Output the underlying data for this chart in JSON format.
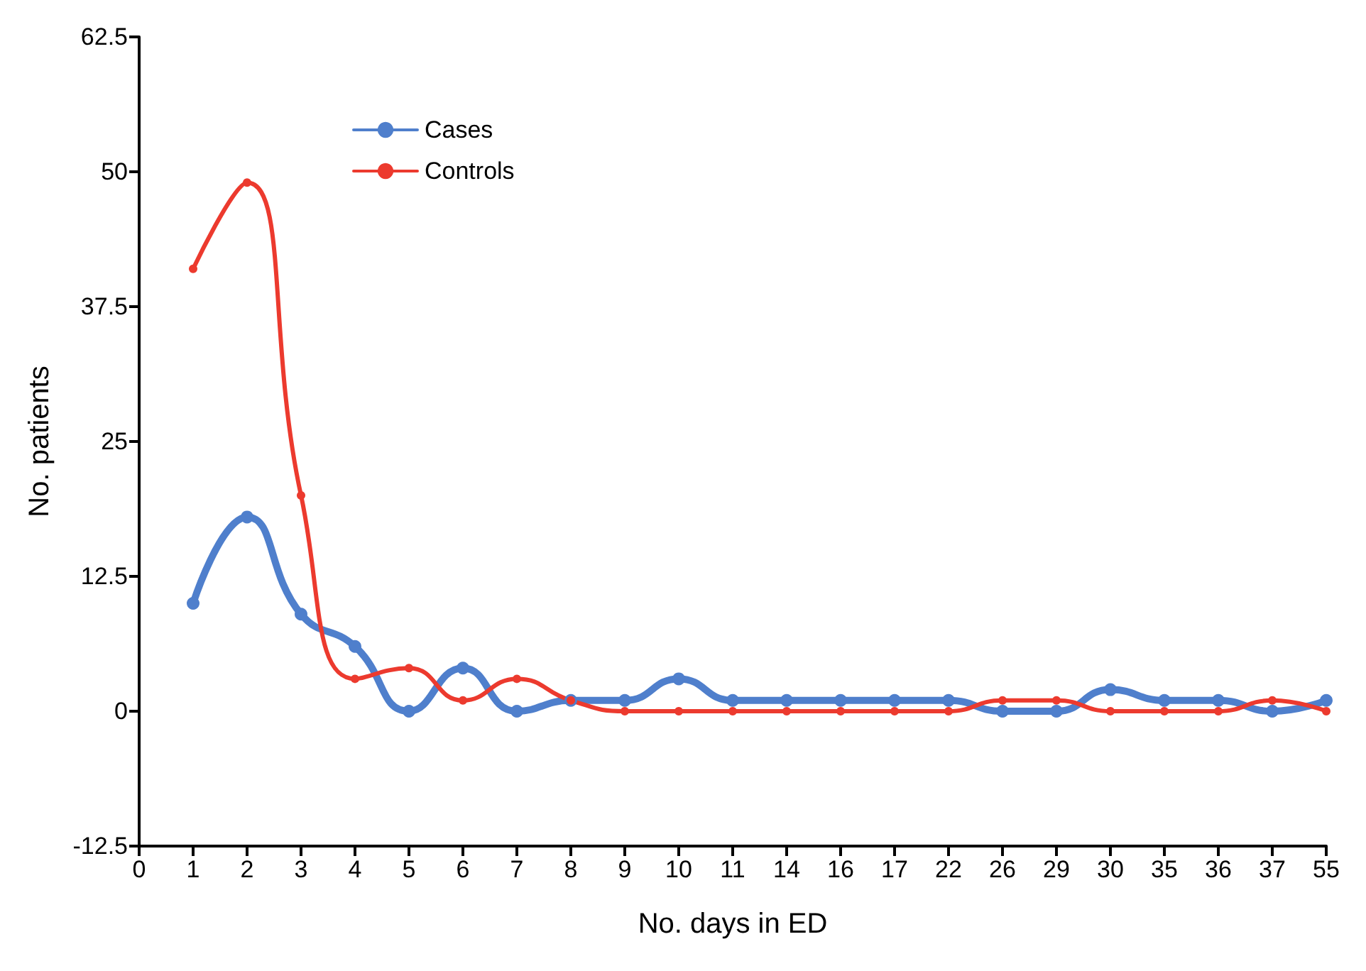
{
  "chart_data": {
    "type": "line",
    "xlabel": "No. days in ED",
    "ylabel": "No. patients",
    "categories": [
      "0",
      "1",
      "2",
      "3",
      "4",
      "5",
      "6",
      "7",
      "8",
      "9",
      "10",
      "11",
      "14",
      "16",
      "17",
      "22",
      "26",
      "29",
      "30",
      "35",
      "36",
      "37",
      "55"
    ],
    "series": [
      {
        "name": "Cases",
        "color": "#4f7fcc",
        "values": [
          null,
          10,
          18,
          9,
          6,
          0,
          4,
          0,
          1,
          1,
          3,
          1,
          1,
          1,
          1,
          1,
          0,
          0,
          2,
          1,
          1,
          0,
          1
        ]
      },
      {
        "name": "Controls",
        "color": "#ec3a2e",
        "values": [
          null,
          41,
          49,
          20,
          3,
          4,
          1,
          3,
          1,
          0,
          0,
          0,
          0,
          0,
          0,
          0,
          1,
          1,
          0,
          0,
          0,
          1,
          0
        ]
      }
    ],
    "ylim": [
      -12.5,
      62.5
    ],
    "yticks": [
      -12.5,
      0,
      12.5,
      25,
      37.5,
      50,
      62.5
    ],
    "grid": false,
    "legend": "top left",
    "marker": "circle",
    "line_style": "solid"
  }
}
